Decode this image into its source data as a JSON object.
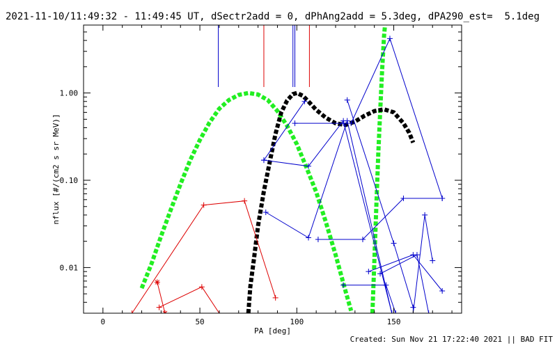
{
  "header": {
    "title": "2021-11-10/11:49:32 - 11:49:45 UT, dSectr2add = 0, dPhAng2add = 5.3deg, dPA290_est=  5.1deg"
  },
  "footer": {
    "created": "Created: Sun Nov 21 17:22:40 2021 || BAD FIT"
  },
  "chart_data": {
    "type": "line",
    "xlabel": "PA [deg]",
    "ylabel": "nflux [#/(cm2 s sr MeV)]",
    "xlim": [
      -10,
      185
    ],
    "ylim": [
      0.003,
      6.0
    ],
    "yscale": "log",
    "x_ticks": [
      0,
      50,
      100,
      150
    ],
    "x_tick_labels": [
      "0",
      "50",
      "100",
      "150"
    ],
    "y_ticks": [
      0.01,
      0.1,
      1.0
    ],
    "y_tick_labels": [
      "0.01",
      "0.10",
      "1.00"
    ],
    "grid": false,
    "colors": {
      "blue": "#0000cc",
      "red": "#dd0000",
      "green": "#22ee22",
      "black": "#000000"
    },
    "vertical_markers": [
      {
        "x": 59.5,
        "color": "blue"
      },
      {
        "x": 83,
        "color": "red"
      },
      {
        "x": 98,
        "color": "blue"
      },
      {
        "x": 99,
        "color": "blue"
      },
      {
        "x": 106.5,
        "color": "red"
      }
    ],
    "series": [
      {
        "style": "dashed",
        "color": "green",
        "marker": "none",
        "points": [
          [
            20,
            0.0058
          ],
          [
            25,
            0.011
          ],
          [
            30,
            0.023
          ],
          [
            35,
            0.046
          ],
          [
            40,
            0.09
          ],
          [
            45,
            0.17
          ],
          [
            50,
            0.29
          ],
          [
            55,
            0.46
          ],
          [
            60,
            0.66
          ],
          [
            65,
            0.83
          ],
          [
            70,
            0.95
          ],
          [
            75,
            1.0
          ],
          [
            80,
            0.96
          ],
          [
            85,
            0.83
          ],
          [
            90,
            0.62
          ],
          [
            95,
            0.42
          ],
          [
            100,
            0.26
          ],
          [
            105,
            0.14
          ],
          [
            110,
            0.073
          ],
          [
            115,
            0.033
          ],
          [
            120,
            0.014
          ],
          [
            125,
            0.0055
          ],
          [
            128,
            0.0032
          ]
        ]
      },
      {
        "style": "dashed",
        "color": "green",
        "marker": "none",
        "points": [
          [
            139,
            0.003
          ],
          [
            140,
            0.012
          ],
          [
            141,
            0.05
          ],
          [
            142,
            0.2
          ],
          [
            143,
            0.6
          ],
          [
            144,
            1.8
          ],
          [
            145,
            4.5
          ],
          [
            145.5,
            6.0
          ]
        ]
      },
      {
        "style": "dashed",
        "color": "black",
        "marker": "none",
        "points": [
          [
            75,
            0.003
          ],
          [
            76,
            0.006
          ],
          [
            78,
            0.013
          ],
          [
            80,
            0.03
          ],
          [
            83,
            0.075
          ],
          [
            86,
            0.16
          ],
          [
            89,
            0.34
          ],
          [
            92,
            0.6
          ],
          [
            95,
            0.82
          ],
          [
            98,
            0.97
          ],
          [
            100,
            1.0
          ],
          [
            103,
            0.93
          ],
          [
            106,
            0.8
          ],
          [
            110,
            0.64
          ],
          [
            115,
            0.52
          ],
          [
            120,
            0.45
          ],
          [
            125,
            0.43
          ],
          [
            130,
            0.47
          ],
          [
            135,
            0.55
          ],
          [
            140,
            0.62
          ],
          [
            145,
            0.65
          ],
          [
            150,
            0.6
          ],
          [
            155,
            0.45
          ],
          [
            158,
            0.35
          ],
          [
            160,
            0.27
          ]
        ]
      },
      {
        "style": "solid",
        "color": "red",
        "marker": "+",
        "points": [
          [
            15,
            0.003
          ],
          [
            52,
            0.052
          ],
          [
            73,
            0.058
          ],
          [
            89,
            0.0045
          ]
        ]
      },
      {
        "style": "solid",
        "color": "red",
        "marker": "+",
        "points": [
          [
            29,
            0.0035
          ],
          [
            51,
            0.006
          ],
          [
            60,
            0.003
          ]
        ]
      },
      {
        "style": "solid",
        "color": "red",
        "marker": "*",
        "points": [
          [
            28,
            0.0068
          ],
          [
            32,
            0.003
          ]
        ]
      },
      {
        "style": "solid",
        "color": "blue",
        "marker": "+",
        "points": [
          [
            83,
            0.17
          ],
          [
            106,
            0.145
          ],
          [
            124,
            0.48
          ],
          [
            149,
            0.003
          ]
        ]
      },
      {
        "style": "solid",
        "color": "blue",
        "marker": "+",
        "points": [
          [
            83,
            0.17
          ],
          [
            104,
            0.8
          ]
        ]
      },
      {
        "style": "solid",
        "color": "blue",
        "marker": "+",
        "points": [
          [
            84,
            0.043
          ],
          [
            106,
            0.022
          ],
          [
            126,
            0.48
          ],
          [
            149,
            0.003
          ]
        ]
      },
      {
        "style": "solid",
        "color": "blue",
        "marker": "+",
        "points": [
          [
            111,
            0.021
          ],
          [
            134,
            0.021
          ],
          [
            155,
            0.062
          ],
          [
            175,
            0.062
          ]
        ]
      },
      {
        "style": "solid",
        "color": "blue",
        "marker": "+",
        "points": [
          [
            124,
            0.0063
          ],
          [
            146,
            0.0063
          ],
          [
            151,
            0.003
          ]
        ]
      },
      {
        "style": "solid",
        "color": "blue",
        "marker": "+",
        "points": [
          [
            137,
            0.009
          ],
          [
            160,
            0.014
          ],
          [
            175,
            0.0054
          ]
        ]
      },
      {
        "style": "solid",
        "color": "blue",
        "marker": "+",
        "points": [
          [
            128,
            0.45
          ],
          [
            148,
            4.2
          ],
          [
            175,
            0.062
          ]
        ]
      },
      {
        "style": "solid",
        "color": "blue",
        "marker": "+",
        "points": [
          [
            126,
            0.83
          ],
          [
            150,
            0.019
          ],
          [
            160,
            0.0035
          ]
        ]
      },
      {
        "style": "solid",
        "color": "blue",
        "marker": "+",
        "points": [
          [
            99,
            0.45
          ],
          [
            124,
            0.45
          ]
        ]
      },
      {
        "style": "solid",
        "color": "blue",
        "marker": "+",
        "points": [
          [
            143,
            0.0085
          ],
          [
            162,
            0.014
          ],
          [
            168,
            0.003
          ]
        ]
      },
      {
        "style": "solid",
        "color": "blue",
        "marker": "+",
        "points": [
          [
            160,
            0.003
          ],
          [
            166,
            0.04
          ],
          [
            170,
            0.012
          ]
        ]
      }
    ]
  }
}
